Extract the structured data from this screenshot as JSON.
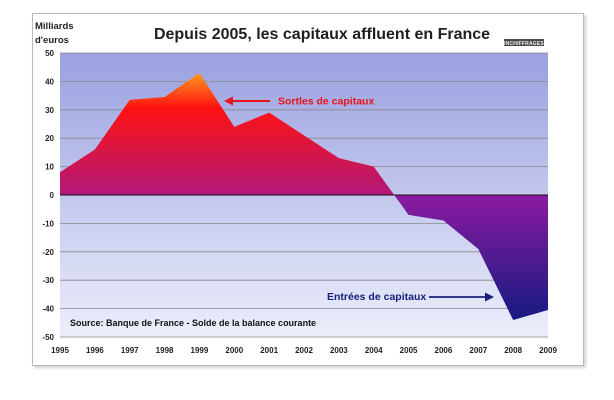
{
  "chart_data": {
    "type": "area",
    "title": "Depuis 2005, les capitaux affluent en France",
    "ylabel_line1": "Milliards",
    "ylabel_line2": "d'euros",
    "x": [
      "1995",
      "1996",
      "1997",
      "1998",
      "1999",
      "2000",
      "2001",
      "2002",
      "2003",
      "2004",
      "2005",
      "2006",
      "2007",
      "2008",
      "2009"
    ],
    "values": [
      8,
      16,
      33.5,
      34.5,
      43,
      24,
      29,
      21,
      13,
      10,
      -7,
      -9,
      -19,
      -44,
      -40.5
    ],
    "ylim": [
      -50,
      50
    ],
    "yticks": [
      50,
      40,
      30,
      20,
      10,
      0,
      -10,
      -20,
      -30,
      -40,
      -50
    ],
    "grid": true,
    "annotations": {
      "outflow": "Sortles de capitaux",
      "inflow": "Entrées de capitaux"
    },
    "source": "Source: Banque de France - Solde de la balance courante",
    "logo": "INCHIFFRAGES",
    "colors": {
      "positive_top": "#ff9b1f",
      "positive_mid": "#ff1212",
      "positive_base": "#b0187a",
      "negative_top": "#8a1aa0",
      "negative_bottom": "#151a80",
      "plot_bg_top": "#9aa0e0",
      "plot_bg_bottom": "#eceefb",
      "outflow_arrow": "#e8141a",
      "inflow_arrow": "#16207a"
    }
  }
}
